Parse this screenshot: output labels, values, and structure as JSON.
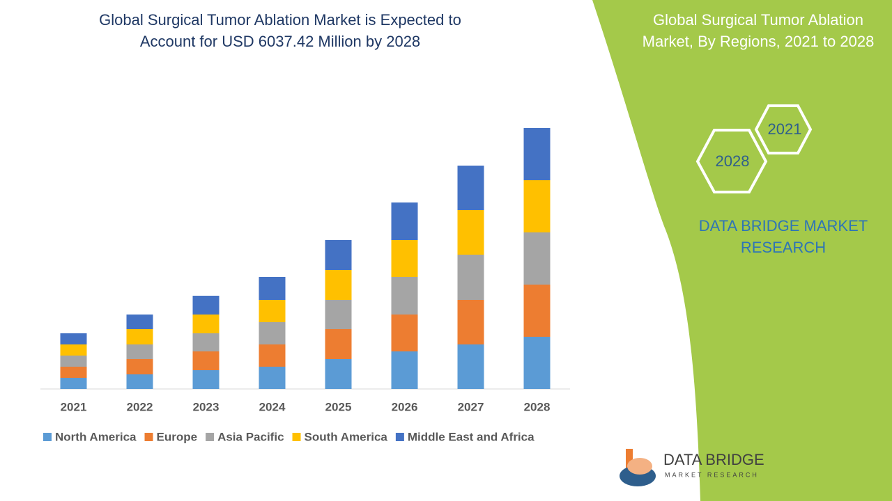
{
  "chart_data": {
    "type": "stacked-bar",
    "title": "Global Surgical Tumor Ablation Market is Expected to Account for USD 6037.42 Million by 2028",
    "categories": [
      "2021",
      "2022",
      "2023",
      "2024",
      "2025",
      "2026",
      "2027",
      "2028"
    ],
    "series": [
      {
        "name": "North America",
        "color": "#5b9bd5",
        "values": [
          16,
          21,
          27,
          32,
          43,
          54,
          64,
          75
        ]
      },
      {
        "name": "Europe",
        "color": "#ed7d31",
        "values": [
          16,
          22,
          27,
          32,
          43,
          53,
          64,
          75
        ]
      },
      {
        "name": "Asia Pacific",
        "color": "#a5a5a5",
        "values": [
          16,
          21,
          26,
          32,
          42,
          54,
          65,
          75
        ]
      },
      {
        "name": "South America",
        "color": "#ffc000",
        "values": [
          16,
          22,
          27,
          32,
          43,
          53,
          64,
          75
        ]
      },
      {
        "name": "Middle East and Africa",
        "color": "#4472c4",
        "values": [
          16,
          21,
          27,
          33,
          43,
          54,
          64,
          75
        ]
      }
    ]
  },
  "panel": {
    "title": "Global Surgical Tumor Ablation Market,  By Regions, 2021 to 2028",
    "hex_start": "2021",
    "hex_end": "2028",
    "brand": "DATA BRIDGE MARKET RESEARCH",
    "logo_name": "DATA BRIDGE",
    "logo_sub": "MARKET RESEARCH"
  }
}
